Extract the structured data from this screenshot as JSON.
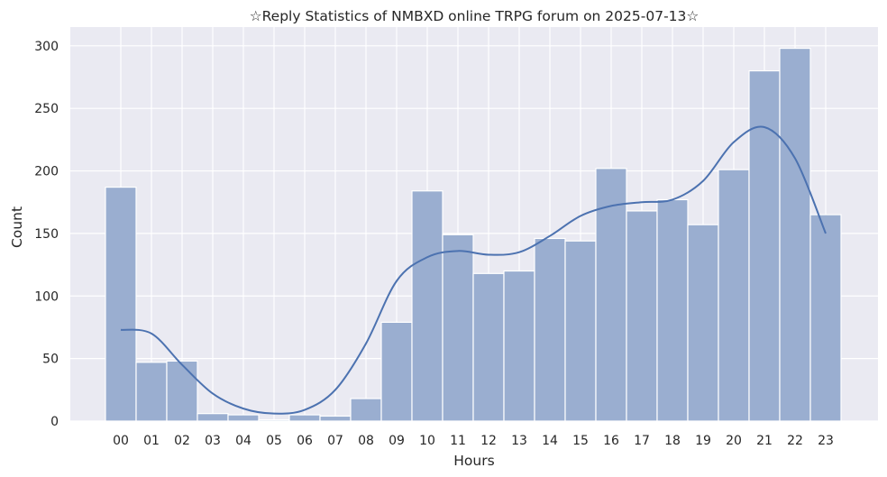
{
  "chart_data": {
    "type": "bar",
    "title": "☆Reply Statistics of NMBXD online TRPG forum on 2025-07-13☆",
    "xlabel": "Hours",
    "ylabel": "Count",
    "categories": [
      "00",
      "01",
      "02",
      "03",
      "04",
      "05",
      "06",
      "07",
      "08",
      "09",
      "10",
      "11",
      "12",
      "13",
      "14",
      "15",
      "16",
      "17",
      "18",
      "19",
      "20",
      "21",
      "22",
      "23"
    ],
    "values": [
      187,
      47,
      48,
      6,
      5,
      1,
      5,
      4,
      18,
      79,
      184,
      149,
      118,
      120,
      146,
      144,
      202,
      168,
      177,
      157,
      201,
      280,
      298,
      165
    ],
    "ylim": [
      0,
      315
    ],
    "yticks": [
      0,
      50,
      100,
      150,
      200,
      250,
      300
    ],
    "grid": true,
    "kde": {
      "x": [
        "00",
        "01",
        "02",
        "03",
        "04",
        "05",
        "06",
        "07",
        "08",
        "09",
        "10",
        "11",
        "12",
        "13",
        "14",
        "15",
        "16",
        "17",
        "18",
        "19",
        "20",
        "21",
        "22",
        "23"
      ],
      "y": [
        73,
        70,
        45,
        22,
        10,
        6,
        9,
        25,
        62,
        112,
        131,
        136,
        133,
        135,
        148,
        164,
        172,
        175,
        177,
        192,
        223,
        235,
        210,
        150
      ]
    },
    "colors": {
      "background": "#eaeaf2",
      "grid": "#ffffff",
      "bar_fill": "#9aaed0",
      "bar_edge": "#ffffff",
      "kde_line": "#4c72b0",
      "text": "#262626"
    }
  }
}
